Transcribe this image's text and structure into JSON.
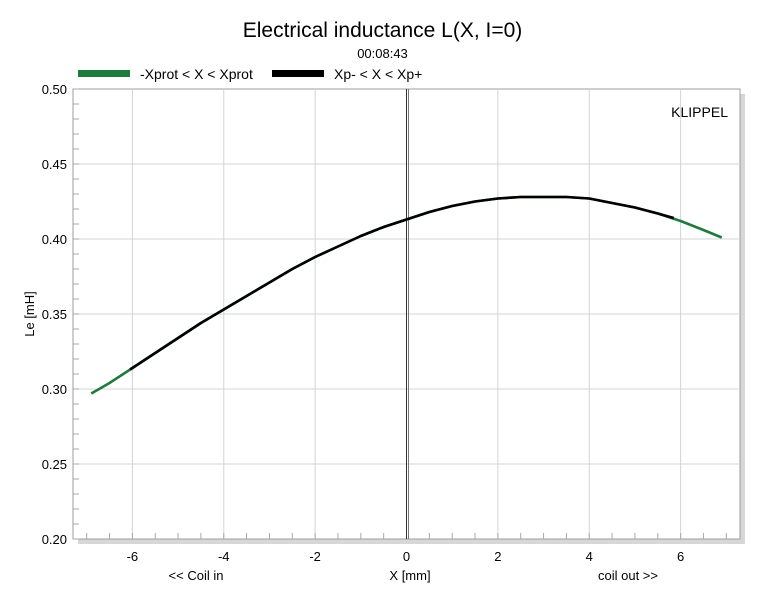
{
  "chart_data": {
    "type": "line",
    "title": "Electrical inductance L(X, I=0)",
    "subtitle": "00:08:43",
    "watermark": "KLIPPEL",
    "xlabel": "X [mm]",
    "ylabel": "Le [mH]",
    "x_left_note": "<< Coil in",
    "x_right_note": "coil out >>",
    "xlim": [
      -7.3,
      7.3
    ],
    "ylim": [
      0.2,
      0.5
    ],
    "xticks": [
      -6,
      -4,
      -2,
      0,
      2,
      4,
      6
    ],
    "xtick_labels": [
      "-6",
      "-4",
      "-2",
      "0",
      "2",
      "4",
      "6"
    ],
    "yticks": [
      0.2,
      0.25,
      0.3,
      0.35,
      0.4,
      0.45,
      0.5
    ],
    "ytick_labels": [
      "0.20",
      "0.25",
      "0.30",
      "0.35",
      "0.40",
      "0.45",
      "0.50"
    ],
    "grid": true,
    "legend_position": "top-left",
    "series": [
      {
        "name": "-Xprot < X < Xprot",
        "color": "#1f7a3e",
        "x": [
          -6.9,
          -6.5,
          -6.0,
          -5.5,
          -5.0,
          -4.5,
          -4.0,
          -3.5,
          -3.0,
          -2.5,
          -2.0,
          -1.5,
          -1.0,
          -0.5,
          0.0,
          0.5,
          1.0,
          1.5,
          2.0,
          2.5,
          3.0,
          3.5,
          4.0,
          4.5,
          5.0,
          5.5,
          6.0,
          6.5,
          6.9
        ],
        "y": [
          0.297,
          0.304,
          0.314,
          0.324,
          0.334,
          0.344,
          0.353,
          0.362,
          0.371,
          0.38,
          0.388,
          0.395,
          0.402,
          0.408,
          0.413,
          0.418,
          0.422,
          0.425,
          0.427,
          0.428,
          0.428,
          0.428,
          0.427,
          0.424,
          0.421,
          0.417,
          0.412,
          0.406,
          0.401
        ]
      },
      {
        "name": "Xp- < X < Xp+",
        "color": "#000000",
        "x": [
          -6.05,
          -5.5,
          -5.0,
          -4.5,
          -4.0,
          -3.5,
          -3.0,
          -2.5,
          -2.0,
          -1.5,
          -1.0,
          -0.5,
          0.0,
          0.5,
          1.0,
          1.5,
          2.0,
          2.5,
          3.0,
          3.5,
          4.0,
          4.5,
          5.0,
          5.5,
          5.85
        ],
        "y": [
          0.313,
          0.324,
          0.334,
          0.344,
          0.353,
          0.362,
          0.371,
          0.38,
          0.388,
          0.395,
          0.402,
          0.408,
          0.413,
          0.418,
          0.422,
          0.425,
          0.427,
          0.428,
          0.428,
          0.428,
          0.427,
          0.424,
          0.421,
          0.417,
          0.414
        ]
      }
    ]
  }
}
